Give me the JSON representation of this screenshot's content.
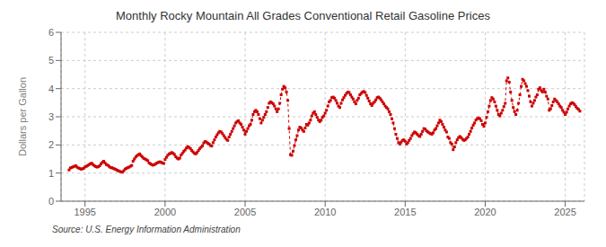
{
  "chart_data": {
    "type": "line",
    "title": "Monthly Rocky Mountain All Grades Conventional Retail Gasoline Prices",
    "y_label": "Dollars per Gallon",
    "source": "Source: U.S. Energy Information Administration",
    "color": "#cc0000",
    "marker": "square",
    "line_style": "dashed",
    "grid": true,
    "xlim": [
      1993.5,
      2026.2
    ],
    "xticks": [
      1995,
      2000,
      2005,
      2010,
      2015,
      2020,
      2025
    ],
    "ylim": [
      0,
      6
    ],
    "yticks": [
      0,
      1,
      2,
      3,
      4,
      5,
      6
    ],
    "x": [
      1994,
      1994.0833,
      1994.1667,
      1994.25,
      1994.3333,
      1994.4167,
      1994.5,
      1994.5833,
      1994.6667,
      1994.75,
      1994.8333,
      1994.9167,
      1995,
      1995.0833,
      1995.1667,
      1995.25,
      1995.3333,
      1995.4167,
      1995.5,
      1995.5833,
      1995.6667,
      1995.75,
      1995.8333,
      1995.9167,
      1996,
      1996.0833,
      1996.1667,
      1996.25,
      1996.3333,
      1996.4167,
      1996.5,
      1996.5833,
      1996.6667,
      1996.75,
      1996.8333,
      1996.9167,
      1997,
      1997.0833,
      1997.1667,
      1997.25,
      1997.3333,
      1997.4167,
      1997.5,
      1997.5833,
      1997.6667,
      1997.75,
      1997.8333,
      1997.9167,
      1998,
      1998.0833,
      1998.1667,
      1998.25,
      1998.3333,
      1998.4167,
      1998.5,
      1998.5833,
      1998.6667,
      1998.75,
      1998.8333,
      1998.9167,
      1999,
      1999.0833,
      1999.1667,
      1999.25,
      1999.3333,
      1999.4167,
      1999.5,
      1999.5833,
      1999.6667,
      1999.75,
      1999.8333,
      1999.9167,
      2000,
      2000.0833,
      2000.1667,
      2000.25,
      2000.3333,
      2000.4167,
      2000.5,
      2000.5833,
      2000.6667,
      2000.75,
      2000.8333,
      2000.9167,
      2001,
      2001.0833,
      2001.1667,
      2001.25,
      2001.3333,
      2001.4167,
      2001.5,
      2001.5833,
      2001.6667,
      2001.75,
      2001.8333,
      2001.9167,
      2002,
      2002.0833,
      2002.1667,
      2002.25,
      2002.3333,
      2002.4167,
      2002.5,
      2002.5833,
      2002.6667,
      2002.75,
      2002.8333,
      2002.9167,
      2003,
      2003.0833,
      2003.1667,
      2003.25,
      2003.3333,
      2003.4167,
      2003.5,
      2003.5833,
      2003.6667,
      2003.75,
      2003.8333,
      2003.9167,
      2004,
      2004.0833,
      2004.1667,
      2004.25,
      2004.3333,
      2004.4167,
      2004.5,
      2004.5833,
      2004.6667,
      2004.75,
      2004.8333,
      2004.9167,
      2005,
      2005.0833,
      2005.1667,
      2005.25,
      2005.3333,
      2005.4167,
      2005.5,
      2005.5833,
      2005.6667,
      2005.75,
      2005.8333,
      2005.9167,
      2006,
      2006.0833,
      2006.1667,
      2006.25,
      2006.3333,
      2006.4167,
      2006.5,
      2006.5833,
      2006.6667,
      2006.75,
      2006.8333,
      2006.9167,
      2007,
      2007.0833,
      2007.1667,
      2007.25,
      2007.3333,
      2007.4167,
      2007.5,
      2007.5833,
      2007.6667,
      2007.75,
      2007.8333,
      2007.9167,
      2008,
      2008.0833,
      2008.1667,
      2008.25,
      2008.3333,
      2008.4167,
      2008.5,
      2008.5833,
      2008.6667,
      2008.75,
      2008.8333,
      2008.9167,
      2009,
      2009.0833,
      2009.1667,
      2009.25,
      2009.3333,
      2009.4167,
      2009.5,
      2009.5833,
      2009.6667,
      2009.75,
      2009.8333,
      2009.9167,
      2010,
      2010.0833,
      2010.1667,
      2010.25,
      2010.3333,
      2010.4167,
      2010.5,
      2010.5833,
      2010.6667,
      2010.75,
      2010.8333,
      2010.9167,
      2011,
      2011.0833,
      2011.1667,
      2011.25,
      2011.3333,
      2011.4167,
      2011.5,
      2011.5833,
      2011.6667,
      2011.75,
      2011.8333,
      2011.9167,
      2012,
      2012.0833,
      2012.1667,
      2012.25,
      2012.3333,
      2012.4167,
      2012.5,
      2012.5833,
      2012.6667,
      2012.75,
      2012.8333,
      2012.9167,
      2013,
      2013.0833,
      2013.1667,
      2013.25,
      2013.3333,
      2013.4167,
      2013.5,
      2013.5833,
      2013.6667,
      2013.75,
      2013.8333,
      2013.9167,
      2014,
      2014.0833,
      2014.1667,
      2014.25,
      2014.3333,
      2014.4167,
      2014.5,
      2014.5833,
      2014.6667,
      2014.75,
      2014.8333,
      2014.9167,
      2015,
      2015.0833,
      2015.1667,
      2015.25,
      2015.3333,
      2015.4167,
      2015.5,
      2015.5833,
      2015.6667,
      2015.75,
      2015.8333,
      2015.9167,
      2016,
      2016.0833,
      2016.1667,
      2016.25,
      2016.3333,
      2016.4167,
      2016.5,
      2016.5833,
      2016.6667,
      2016.75,
      2016.8333,
      2016.9167,
      2017,
      2017.0833,
      2017.1667,
      2017.25,
      2017.3333,
      2017.4167,
      2017.5,
      2017.5833,
      2017.6667,
      2017.75,
      2017.8333,
      2017.9167,
      2018,
      2018.0833,
      2018.1667,
      2018.25,
      2018.3333,
      2018.4167,
      2018.5,
      2018.5833,
      2018.6667,
      2018.75,
      2018.8333,
      2018.9167,
      2019,
      2019.0833,
      2019.1667,
      2019.25,
      2019.3333,
      2019.4167,
      2019.5,
      2019.5833,
      2019.6667,
      2019.75,
      2019.8333,
      2019.9167,
      2020,
      2020.0833,
      2020.1667,
      2020.25,
      2020.3333,
      2020.4167,
      2020.5,
      2020.5833,
      2020.6667,
      2020.75,
      2020.8333,
      2020.9167,
      2021,
      2021.0833,
      2021.1667,
      2021.25,
      2021.3333,
      2021.4167,
      2021.5,
      2021.5833,
      2021.6667,
      2021.75,
      2021.8333,
      2021.9167,
      2022,
      2022.0833,
      2022.1667,
      2022.25,
      2022.3333,
      2022.4167,
      2022.5,
      2022.5833,
      2022.6667,
      2022.75,
      2022.8333,
      2022.9167,
      2023,
      2023.0833,
      2023.1667,
      2023.25,
      2023.3333,
      2023.4167,
      2023.5,
      2023.5833,
      2023.6667,
      2023.75,
      2023.8333,
      2023.9167,
      2024,
      2024.0833,
      2024.1667,
      2024.25,
      2024.3333,
      2024.4167,
      2024.5,
      2024.5833,
      2024.6667,
      2024.75,
      2024.8333,
      2024.9167,
      2025,
      2025.0833,
      2025.1667,
      2025.25,
      2025.3333,
      2025.4167,
      2025.5,
      2025.5833,
      2025.6667,
      2025.75,
      2025.8333,
      2025.9167
    ],
    "values": [
      1.11,
      1.18,
      1.2,
      1.22,
      1.24,
      1.26,
      1.21,
      1.18,
      1.16,
      1.14,
      1.15,
      1.17,
      1.22,
      1.24,
      1.27,
      1.3,
      1.33,
      1.35,
      1.3,
      1.26,
      1.23,
      1.21,
      1.23,
      1.26,
      1.33,
      1.38,
      1.42,
      1.36,
      1.3,
      1.28,
      1.24,
      1.2,
      1.19,
      1.17,
      1.15,
      1.13,
      1.1,
      1.08,
      1.06,
      1.04,
      1.03,
      1.08,
      1.14,
      1.17,
      1.19,
      1.21,
      1.24,
      1.27,
      1.42,
      1.5,
      1.57,
      1.62,
      1.65,
      1.68,
      1.62,
      1.57,
      1.52,
      1.5,
      1.47,
      1.44,
      1.36,
      1.33,
      1.3,
      1.28,
      1.3,
      1.33,
      1.36,
      1.38,
      1.4,
      1.38,
      1.36,
      1.34,
      1.48,
      1.56,
      1.63,
      1.68,
      1.7,
      1.73,
      1.7,
      1.66,
      1.58,
      1.53,
      1.5,
      1.53,
      1.64,
      1.7,
      1.77,
      1.82,
      1.89,
      1.94,
      1.91,
      1.87,
      1.8,
      1.75,
      1.7,
      1.68,
      1.73,
      1.8,
      1.87,
      1.92,
      1.97,
      2.07,
      2.12,
      2.1,
      2.06,
      2.03,
      1.98,
      1.96,
      2.08,
      2.18,
      2.28,
      2.36,
      2.43,
      2.48,
      2.46,
      2.4,
      2.33,
      2.26,
      2.2,
      2.16,
      2.28,
      2.38,
      2.48,
      2.58,
      2.68,
      2.78,
      2.83,
      2.86,
      2.78,
      2.73,
      2.63,
      2.53,
      2.38,
      2.48,
      2.58,
      2.68,
      2.73,
      2.88,
      3.08,
      3.18,
      3.23,
      3.18,
      3.08,
      2.93,
      2.78,
      2.88,
      2.98,
      3.08,
      3.18,
      3.33,
      3.48,
      3.53,
      3.5,
      3.46,
      3.38,
      3.28,
      3.18,
      3.28,
      3.48,
      3.78,
      3.98,
      4.08,
      4.03,
      3.88,
      3.58,
      2.58,
      1.65,
      1.63,
      1.78,
      1.98,
      2.18,
      2.33,
      2.53,
      2.63,
      2.6,
      2.53,
      2.48,
      2.6,
      2.73,
      2.7,
      2.78,
      2.88,
      3.03,
      3.13,
      3.18,
      3.08,
      2.98,
      2.88,
      2.83,
      2.88,
      2.98,
      3.03,
      3.13,
      3.23,
      3.38,
      3.53,
      3.58,
      3.68,
      3.7,
      3.66,
      3.58,
      3.48,
      3.38,
      3.33,
      3.48,
      3.6,
      3.68,
      3.76,
      3.83,
      3.88,
      3.86,
      3.78,
      3.7,
      3.63,
      3.53,
      3.46,
      3.58,
      3.66,
      3.78,
      3.83,
      3.88,
      3.9,
      3.86,
      3.76,
      3.66,
      3.56,
      3.46,
      3.4,
      3.48,
      3.53,
      3.6,
      3.68,
      3.7,
      3.66,
      3.6,
      3.53,
      3.46,
      3.38,
      3.33,
      3.28,
      3.18,
      3.08,
      2.93,
      2.78,
      2.58,
      2.38,
      2.23,
      2.08,
      2.03,
      2.1,
      2.16,
      2.18,
      2.13,
      2.03,
      2.08,
      2.16,
      2.23,
      2.33,
      2.4,
      2.46,
      2.43,
      2.38,
      2.33,
      2.3,
      2.38,
      2.48,
      2.58,
      2.56,
      2.5,
      2.46,
      2.43,
      2.4,
      2.38,
      2.43,
      2.53,
      2.58,
      2.68,
      2.78,
      2.88,
      2.83,
      2.73,
      2.63,
      2.53,
      2.46,
      2.28,
      2.23,
      2.08,
      2.03,
      1.83,
      1.93,
      2.08,
      2.18,
      2.26,
      2.3,
      2.26,
      2.2,
      2.16,
      2.18,
      2.23,
      2.28,
      2.38,
      2.48,
      2.6,
      2.7,
      2.78,
      2.88,
      2.93,
      2.96,
      2.93,
      2.86,
      2.73,
      2.66,
      2.78,
      2.98,
      3.18,
      3.38,
      3.58,
      3.68,
      3.63,
      3.53,
      3.38,
      3.23,
      3.08,
      3.03,
      3.13,
      3.23,
      3.36,
      3.48,
      4.28,
      4.38,
      4.23,
      3.88,
      3.58,
      3.33,
      3.18,
      3.08,
      3.23,
      3.48,
      3.78,
      4.08,
      4.33,
      4.28,
      4.18,
      4.08,
      3.93,
      3.73,
      3.53,
      3.38,
      3.48,
      3.58,
      3.7,
      3.78,
      3.98,
      4.03,
      3.93,
      3.88,
      3.98,
      3.88,
      3.73,
      3.63,
      3.23,
      3.28,
      3.4,
      3.53,
      3.63,
      3.58,
      3.53,
      3.46,
      3.38,
      3.33,
      3.23,
      3.16,
      3.08,
      3.16,
      3.28,
      3.38,
      3.46,
      3.5,
      3.48,
      3.43,
      3.36,
      3.3,
      3.26,
      3.2
    ]
  }
}
